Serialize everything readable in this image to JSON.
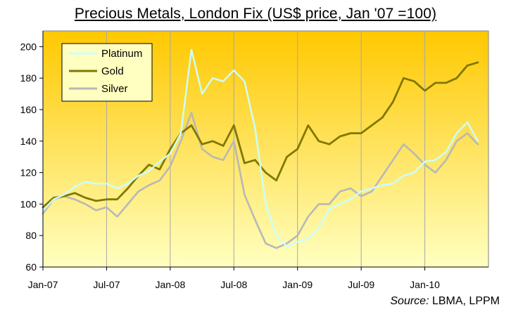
{
  "chart_data": {
    "type": "line",
    "title": "Precious Metals, London Fix (US$ price, Jan '07 =100)",
    "xlabel": "",
    "ylabel": "",
    "ylim": [
      60,
      210
    ],
    "y_ticks": [
      60,
      80,
      100,
      120,
      140,
      160,
      180,
      200
    ],
    "x_domain": [
      "2007-01",
      "2010-07"
    ],
    "x_tick_labels": [
      "Jan-07",
      "Jul-07",
      "Jan-08",
      "Jul-08",
      "Jan-09",
      "Jul-09",
      "Jan-10"
    ],
    "grid": "vertical lines at ticks",
    "legend": "top-left",
    "background": "gradient from #FFC800 (top) to #FFFFC0 (bottom)",
    "series": [
      {
        "name": "Platinum",
        "color": "#CCFFFF",
        "x": [
          "2007-01",
          "2007-02",
          "2007-03",
          "2007-04",
          "2007-05",
          "2007-06",
          "2007-07",
          "2007-08",
          "2007-09",
          "2007-10",
          "2007-11",
          "2007-12",
          "2008-01",
          "2008-02",
          "2008-03",
          "2008-04",
          "2008-05",
          "2008-06",
          "2008-07",
          "2008-08",
          "2008-09",
          "2008-10",
          "2008-11",
          "2008-12",
          "2009-01",
          "2009-02",
          "2009-03",
          "2009-04",
          "2009-05",
          "2009-06",
          "2009-07",
          "2009-08",
          "2009-09",
          "2009-10",
          "2009-11",
          "2009-12",
          "2010-01",
          "2010-02",
          "2010-03",
          "2010-04",
          "2010-05",
          "2010-06"
        ],
        "values": [
          96,
          103,
          106,
          111,
          114,
          113,
          113,
          110,
          113,
          118,
          121,
          127,
          132,
          145,
          198,
          170,
          180,
          178,
          185,
          178,
          148,
          100,
          80,
          73,
          76,
          78,
          85,
          97,
          100,
          103,
          108,
          110,
          112,
          113,
          118,
          120,
          127,
          128,
          133,
          145,
          152,
          140
        ]
      },
      {
        "name": "Gold",
        "color": "#807800",
        "x": [
          "2007-01",
          "2007-02",
          "2007-03",
          "2007-04",
          "2007-05",
          "2007-06",
          "2007-07",
          "2007-08",
          "2007-09",
          "2007-10",
          "2007-11",
          "2007-12",
          "2008-01",
          "2008-02",
          "2008-03",
          "2008-04",
          "2008-05",
          "2008-06",
          "2008-07",
          "2008-08",
          "2008-09",
          "2008-10",
          "2008-11",
          "2008-12",
          "2009-01",
          "2009-02",
          "2009-03",
          "2009-04",
          "2009-05",
          "2009-06",
          "2009-07",
          "2009-08",
          "2009-09",
          "2009-10",
          "2009-11",
          "2009-12",
          "2010-01",
          "2010-02",
          "2010-03",
          "2010-04",
          "2010-05",
          "2010-06"
        ],
        "values": [
          98,
          104,
          105,
          107,
          104,
          102,
          103,
          103,
          110,
          118,
          125,
          122,
          135,
          145,
          150,
          138,
          140,
          137,
          150,
          126,
          128,
          120,
          115,
          130,
          135,
          150,
          140,
          138,
          143,
          145,
          145,
          150,
          155,
          165,
          180,
          178,
          172,
          177,
          177,
          180,
          188,
          190
        ]
      },
      {
        "name": "Silver",
        "color": "#B8B8B8",
        "x": [
          "2007-01",
          "2007-02",
          "2007-03",
          "2007-04",
          "2007-05",
          "2007-06",
          "2007-07",
          "2007-08",
          "2007-09",
          "2007-10",
          "2007-11",
          "2007-12",
          "2008-01",
          "2008-02",
          "2008-03",
          "2008-04",
          "2008-05",
          "2008-06",
          "2008-07",
          "2008-08",
          "2008-09",
          "2008-10",
          "2008-11",
          "2008-12",
          "2009-01",
          "2009-02",
          "2009-03",
          "2009-04",
          "2009-05",
          "2009-06",
          "2009-07",
          "2009-08",
          "2009-09",
          "2009-10",
          "2009-11",
          "2009-12",
          "2010-01",
          "2010-02",
          "2010-03",
          "2010-04",
          "2010-05",
          "2010-06"
        ],
        "values": [
          94,
          103,
          105,
          103,
          100,
          96,
          98,
          92,
          100,
          108,
          112,
          115,
          124,
          140,
          158,
          135,
          130,
          128,
          140,
          106,
          90,
          75,
          72,
          75,
          80,
          92,
          100,
          100,
          108,
          110,
          105,
          108,
          118,
          128,
          138,
          132,
          125,
          120,
          128,
          140,
          145,
          138
        ]
      }
    ]
  },
  "source": {
    "label": "Source:",
    "text": " LBMA, LPPM"
  }
}
